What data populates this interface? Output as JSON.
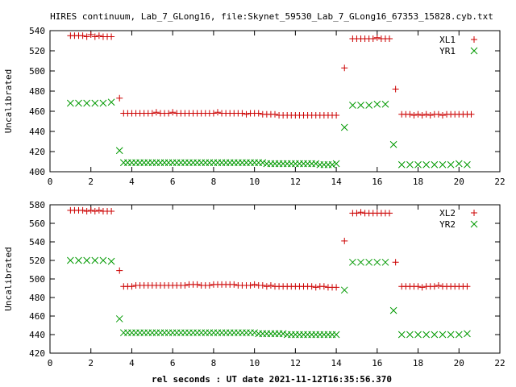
{
  "title": "HIRES continuum, Lab_7_GLong16, file:Skynet_59530_Lab_7_GLong16_67353_15828.cyb.txt",
  "xlabel": "rel seconds : UT date 2021-11-12T16:35:56.370",
  "colors": {
    "XL": "#cc0000",
    "YR": "#009900"
  },
  "chart_data": [
    {
      "type": "scatter",
      "ylabel": "Uncalibrated",
      "xlim": [
        0,
        22
      ],
      "ylim": [
        400,
        540
      ],
      "xticks": [
        0,
        2,
        4,
        6,
        8,
        10,
        12,
        14,
        16,
        18,
        20,
        22
      ],
      "yticks": [
        400,
        420,
        440,
        460,
        480,
        500,
        520,
        540
      ],
      "grid": false,
      "legend": "top-right",
      "series": [
        {
          "name": "XL1",
          "marker": "plus",
          "x": [
            1.0,
            1.2,
            1.4,
            1.6,
            1.8,
            2.0,
            2.2,
            2.4,
            2.6,
            2.8,
            3.0,
            3.4,
            3.6,
            3.8,
            4.0,
            4.2,
            4.4,
            4.6,
            4.8,
            5.0,
            5.2,
            5.4,
            5.6,
            5.8,
            6.0,
            6.2,
            6.4,
            6.6,
            6.8,
            7.0,
            7.2,
            7.4,
            7.6,
            7.8,
            8.0,
            8.2,
            8.4,
            8.6,
            8.8,
            9.0,
            9.2,
            9.4,
            9.6,
            9.8,
            10.0,
            10.2,
            10.4,
            10.6,
            10.8,
            11.0,
            11.2,
            11.4,
            11.6,
            11.8,
            12.0,
            12.2,
            12.4,
            12.6,
            12.8,
            13.0,
            13.2,
            13.4,
            13.6,
            13.8,
            14.0,
            14.4,
            14.8,
            15.0,
            15.2,
            15.4,
            15.6,
            15.8,
            16.0,
            16.2,
            16.4,
            16.6,
            16.9,
            17.2,
            17.4,
            17.6,
            17.8,
            18.0,
            18.2,
            18.4,
            18.6,
            18.8,
            19.0,
            19.2,
            19.4,
            19.6,
            19.8,
            20.0,
            20.2,
            20.4,
            20.6
          ],
          "y": [
            535,
            535,
            535,
            535,
            534,
            536,
            534,
            535,
            534,
            534,
            534,
            473,
            458,
            458,
            458,
            458,
            458,
            458,
            458,
            458,
            459,
            458,
            458,
            458,
            459,
            458,
            458,
            458,
            458,
            458,
            458,
            458,
            458,
            458,
            458,
            459,
            458,
            458,
            458,
            458,
            458,
            458,
            457,
            458,
            458,
            458,
            457,
            457,
            457,
            457,
            456,
            456,
            456,
            456,
            456,
            456,
            456,
            456,
            456,
            456,
            456,
            456,
            456,
            456,
            456,
            503,
            532,
            532,
            532,
            532,
            532,
            532,
            533,
            532,
            532,
            532,
            482,
            457,
            457,
            457,
            456,
            457,
            456,
            457,
            456,
            457,
            457,
            456,
            457,
            457,
            457,
            457,
            457,
            457,
            457
          ]
        },
        {
          "name": "YR1",
          "marker": "cross",
          "x": [
            1.0,
            1.4,
            1.8,
            2.2,
            2.6,
            3.0,
            3.4,
            3.6,
            3.8,
            4.0,
            4.2,
            4.4,
            4.6,
            4.8,
            5.0,
            5.2,
            5.4,
            5.6,
            5.8,
            6.0,
            6.2,
            6.4,
            6.6,
            6.8,
            7.0,
            7.2,
            7.4,
            7.6,
            7.8,
            8.0,
            8.2,
            8.4,
            8.6,
            8.8,
            9.0,
            9.2,
            9.4,
            9.6,
            9.8,
            10.0,
            10.2,
            10.4,
            10.6,
            10.8,
            11.0,
            11.2,
            11.4,
            11.6,
            11.8,
            12.0,
            12.2,
            12.4,
            12.6,
            12.8,
            13.0,
            13.2,
            13.4,
            13.6,
            13.8,
            14.0,
            14.4,
            14.8,
            15.2,
            15.6,
            16.0,
            16.4,
            16.8,
            17.2,
            17.6,
            18.0,
            18.4,
            18.8,
            19.2,
            19.6,
            20.0,
            20.4
          ],
          "y": [
            468,
            468,
            468,
            468,
            468,
            469,
            421,
            409,
            409,
            409,
            409,
            409,
            409,
            409,
            409,
            409,
            409,
            409,
            409,
            409,
            409,
            409,
            409,
            409,
            409,
            409,
            409,
            409,
            409,
            409,
            409,
            409,
            409,
            409,
            409,
            409,
            409,
            409,
            409,
            409,
            409,
            409,
            408,
            408,
            408,
            408,
            408,
            408,
            408,
            408,
            408,
            408,
            408,
            408,
            408,
            407,
            407,
            407,
            407,
            408,
            444,
            466,
            466,
            466,
            467,
            467,
            427,
            407,
            407,
            407,
            407,
            407,
            407,
            407,
            408,
            407
          ]
        }
      ]
    },
    {
      "type": "scatter",
      "ylabel": "Uncalibrated",
      "xlim": [
        0,
        22
      ],
      "ylim": [
        420,
        580
      ],
      "xticks": [
        0,
        2,
        4,
        6,
        8,
        10,
        12,
        14,
        16,
        18,
        20,
        22
      ],
      "yticks": [
        420,
        440,
        460,
        480,
        500,
        520,
        540,
        560,
        580
      ],
      "grid": false,
      "legend": "top-right",
      "series": [
        {
          "name": "XL2",
          "marker": "plus",
          "x": [
            1.0,
            1.2,
            1.4,
            1.6,
            1.8,
            2.0,
            2.2,
            2.4,
            2.6,
            2.8,
            3.0,
            3.4,
            3.6,
            3.8,
            4.0,
            4.2,
            4.4,
            4.6,
            4.8,
            5.0,
            5.2,
            5.4,
            5.6,
            5.8,
            6.0,
            6.2,
            6.4,
            6.6,
            6.8,
            7.0,
            7.2,
            7.4,
            7.6,
            7.8,
            8.0,
            8.2,
            8.4,
            8.6,
            8.8,
            9.0,
            9.2,
            9.4,
            9.6,
            9.8,
            10.0,
            10.2,
            10.4,
            10.6,
            10.8,
            11.0,
            11.2,
            11.4,
            11.6,
            11.8,
            12.0,
            12.2,
            12.4,
            12.6,
            12.8,
            13.0,
            13.2,
            13.4,
            13.6,
            13.8,
            14.0,
            14.4,
            14.8,
            15.0,
            15.2,
            15.4,
            15.6,
            15.8,
            16.0,
            16.2,
            16.4,
            16.6,
            16.9,
            17.2,
            17.4,
            17.6,
            17.8,
            18.0,
            18.2,
            18.4,
            18.6,
            18.8,
            19.0,
            19.2,
            19.4,
            19.6,
            19.8,
            20.0,
            20.2,
            20.4
          ],
          "y": [
            574,
            574,
            574,
            574,
            573,
            574,
            573,
            574,
            573,
            573,
            573,
            509,
            492,
            492,
            492,
            493,
            493,
            493,
            493,
            493,
            493,
            493,
            493,
            493,
            493,
            493,
            493,
            493,
            494,
            494,
            494,
            493,
            493,
            493,
            494,
            494,
            494,
            494,
            494,
            494,
            493,
            493,
            493,
            493,
            494,
            493,
            493,
            492,
            493,
            492,
            492,
            492,
            492,
            492,
            492,
            492,
            492,
            492,
            492,
            491,
            492,
            492,
            491,
            491,
            491,
            541,
            571,
            571,
            572,
            571,
            571,
            571,
            571,
            571,
            571,
            571,
            518,
            492,
            492,
            492,
            492,
            492,
            491,
            492,
            492,
            492,
            493,
            492,
            492,
            492,
            492,
            492,
            492,
            492
          ]
        },
        {
          "name": "YR2",
          "marker": "cross",
          "x": [
            1.0,
            1.4,
            1.8,
            2.2,
            2.6,
            3.0,
            3.4,
            3.6,
            3.8,
            4.0,
            4.2,
            4.4,
            4.6,
            4.8,
            5.0,
            5.2,
            5.4,
            5.6,
            5.8,
            6.0,
            6.2,
            6.4,
            6.6,
            6.8,
            7.0,
            7.2,
            7.4,
            7.6,
            7.8,
            8.0,
            8.2,
            8.4,
            8.6,
            8.8,
            9.0,
            9.2,
            9.4,
            9.6,
            9.8,
            10.0,
            10.2,
            10.4,
            10.6,
            10.8,
            11.0,
            11.2,
            11.4,
            11.6,
            11.8,
            12.0,
            12.2,
            12.4,
            12.6,
            12.8,
            13.0,
            13.2,
            13.4,
            13.6,
            13.8,
            14.0,
            14.4,
            14.8,
            15.2,
            15.6,
            16.0,
            16.4,
            16.8,
            17.2,
            17.6,
            18.0,
            18.4,
            18.8,
            19.2,
            19.6,
            20.0,
            20.4
          ],
          "y": [
            520,
            520,
            520,
            520,
            520,
            519,
            457,
            442,
            442,
            442,
            442,
            442,
            442,
            442,
            442,
            442,
            442,
            442,
            442,
            442,
            442,
            442,
            442,
            442,
            442,
            442,
            442,
            442,
            442,
            442,
            442,
            442,
            442,
            442,
            442,
            442,
            442,
            442,
            442,
            442,
            441,
            441,
            441,
            441,
            441,
            441,
            441,
            440,
            440,
            440,
            440,
            440,
            440,
            440,
            440,
            440,
            440,
            440,
            440,
            440,
            488,
            518,
            518,
            518,
            518,
            518,
            466,
            440,
            440,
            440,
            440,
            440,
            440,
            440,
            440,
            441
          ]
        }
      ]
    }
  ]
}
